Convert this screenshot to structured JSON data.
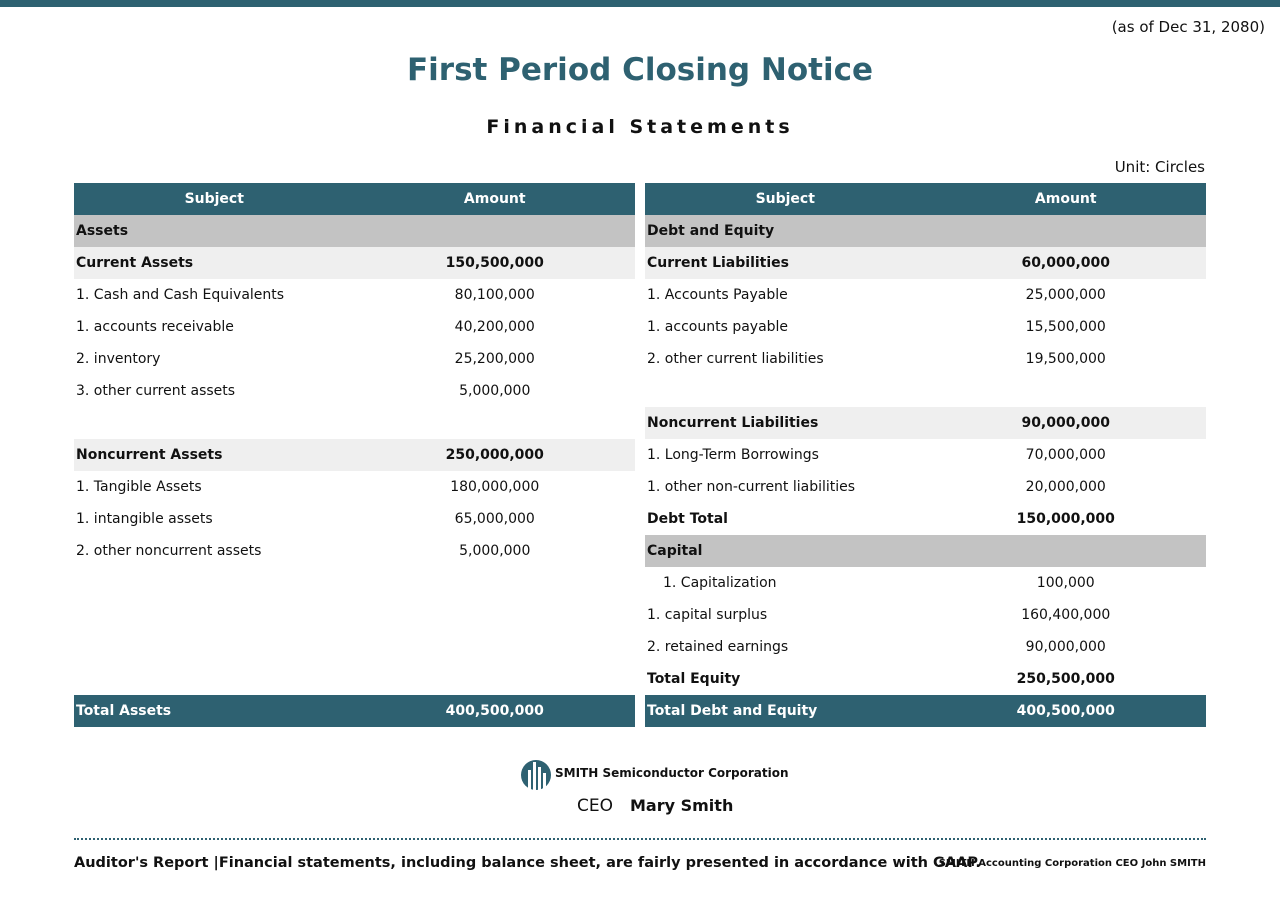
{
  "header": {
    "as_of": "(as of Dec 31, 2080)",
    "title": "First Period Closing Notice",
    "subtitle": "Financial Statements",
    "unit": "Unit: Circles"
  },
  "left_table": {
    "header": [
      "Subject",
      "Amount"
    ],
    "rows": [
      [
        "Assets"
      ],
      [
        "Current Assets",
        "150,500,000"
      ],
      [
        "1. Cash and Cash Equivalents",
        "80,100,000"
      ],
      [
        "1. accounts receivable",
        "40,200,000"
      ],
      [
        "2. inventory",
        "25,200,000"
      ],
      [
        "3. other current assets",
        "5,000,000"
      ],
      [
        "Noncurrent Assets",
        "250,000,000"
      ],
      [
        "1. Tangible Assets",
        "180,000,000"
      ],
      [
        "1. intangible assets",
        "65,000,000"
      ],
      [
        "2. other noncurrent assets",
        "5,000,000"
      ]
    ],
    "total": [
      "Total Assets",
      "400,500,000"
    ]
  },
  "right_table": {
    "header": [
      "Subject",
      "Amount"
    ],
    "rows": [
      [
        "Debt and Equity"
      ],
      [
        "Current Liabilities",
        "60,000,000"
      ],
      [
        "1. Accounts Payable",
        "25,000,000"
      ],
      [
        "1. accounts payable",
        "15,500,000"
      ],
      [
        "2. other current liabilities",
        "19,500,000"
      ],
      [
        "Noncurrent Liabilities",
        "90,000,000"
      ],
      [
        "1. Long-Term Borrowings",
        "70,000,000"
      ],
      [
        "1. other non-current liabilities",
        "20,000,000"
      ],
      [
        "Debt Total",
        "150,000,000"
      ],
      [
        "Capital"
      ],
      [
        "1. Capitalization",
        "100,000"
      ],
      [
        "1. capital surplus",
        "160,400,000"
      ],
      [
        "2. retained earnings",
        "90,000,000"
      ],
      [
        "Total Equity",
        "250,500,000"
      ]
    ],
    "total": [
      "Total Debt and Equity",
      "400,500,000"
    ]
  },
  "signature": {
    "company": "SMITH Semiconductor Corporation",
    "role": "CEO",
    "name": "Mary Smith"
  },
  "footer": {
    "auditor_report": "Auditor's Report |Financial statements, including balance sheet, are fairly presented in accordance with GAAP.",
    "signer": "SMITH Accounting Corporation CEO John SMITH"
  }
}
